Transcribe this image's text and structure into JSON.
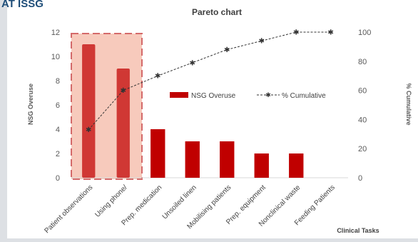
{
  "header_fragment": "AT ISSG",
  "chart_data": {
    "type": "bar",
    "title": "Pareto chart",
    "xlabel": "Clinical Tasks",
    "ylabel": "NSG Overuse",
    "y2label": "% Cumulative",
    "ylim": [
      0,
      12
    ],
    "yticks": [
      0,
      2,
      4,
      6,
      8,
      10,
      12
    ],
    "y2lim": [
      0,
      100
    ],
    "y2ticks": [
      0,
      20,
      40,
      60,
      80,
      100
    ],
    "categories": [
      "Patient observations",
      "Using phone/",
      "Prep. medication",
      "Unsoiled linen",
      "Mobilising patients",
      "Prep. equipment",
      "Nonclinical waste",
      "Feeding Patients"
    ],
    "series": [
      {
        "name": "NSG Overuse",
        "kind": "bar",
        "color": "#c00000",
        "values": [
          11,
          9,
          4,
          3,
          3,
          2,
          2,
          0
        ]
      },
      {
        "name": "% Cumulative",
        "kind": "line",
        "color": "#333333",
        "values": [
          33,
          60,
          70,
          79,
          88,
          94,
          100,
          100
        ]
      }
    ],
    "legend_position": "center-right",
    "grid": false,
    "highlight": {
      "categories": [
        "Patient observations",
        "Using phone/"
      ],
      "color": "#f4b8a6",
      "border": "#d46a6a"
    }
  }
}
